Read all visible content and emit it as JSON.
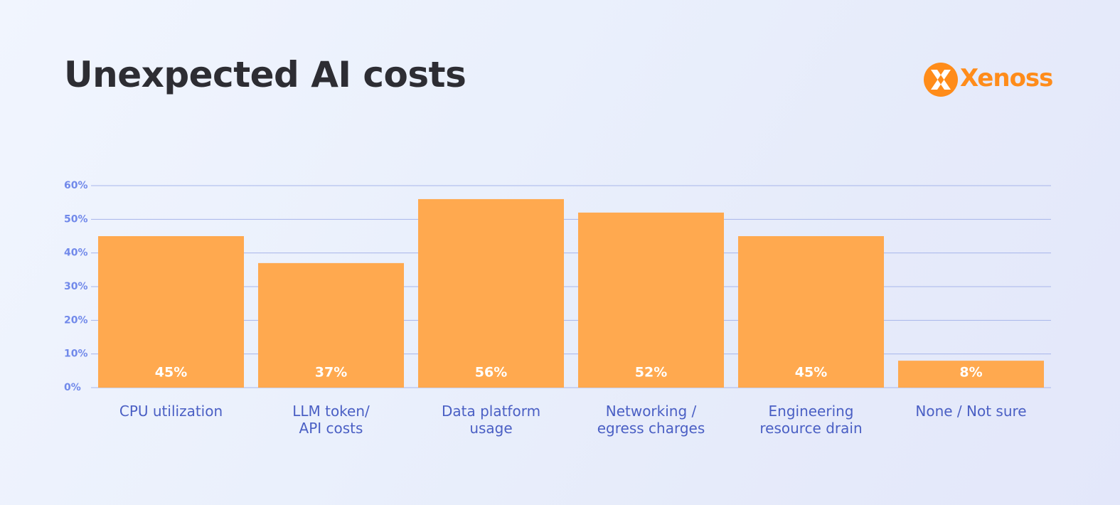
{
  "chart_data": {
    "type": "bar",
    "title": "Unexpected AI costs",
    "logo": "Xenoss",
    "categories": [
      "CPU utilization",
      "LLM token/\nAPI costs",
      "Data platform\nusage",
      "Networking /\negress charges",
      "Engineering\nresource drain",
      "None / Not sure"
    ],
    "values": [
      45,
      37,
      56,
      52,
      45,
      8
    ],
    "value_labels": [
      "45%",
      "37%",
      "56%",
      "52%",
      "45%",
      "8%"
    ],
    "color": "#ffa94f",
    "ylim": [
      0,
      60
    ],
    "yticks": [
      {
        "value": 0,
        "label": "0%"
      },
      {
        "value": 10,
        "label": "10%"
      },
      {
        "value": 20,
        "label": "20%"
      },
      {
        "value": 30,
        "label": "30%"
      },
      {
        "value": 40,
        "label": "40%"
      },
      {
        "value": 50,
        "label": "50%"
      },
      {
        "value": 60,
        "label": "60%"
      }
    ],
    "grid": true
  }
}
